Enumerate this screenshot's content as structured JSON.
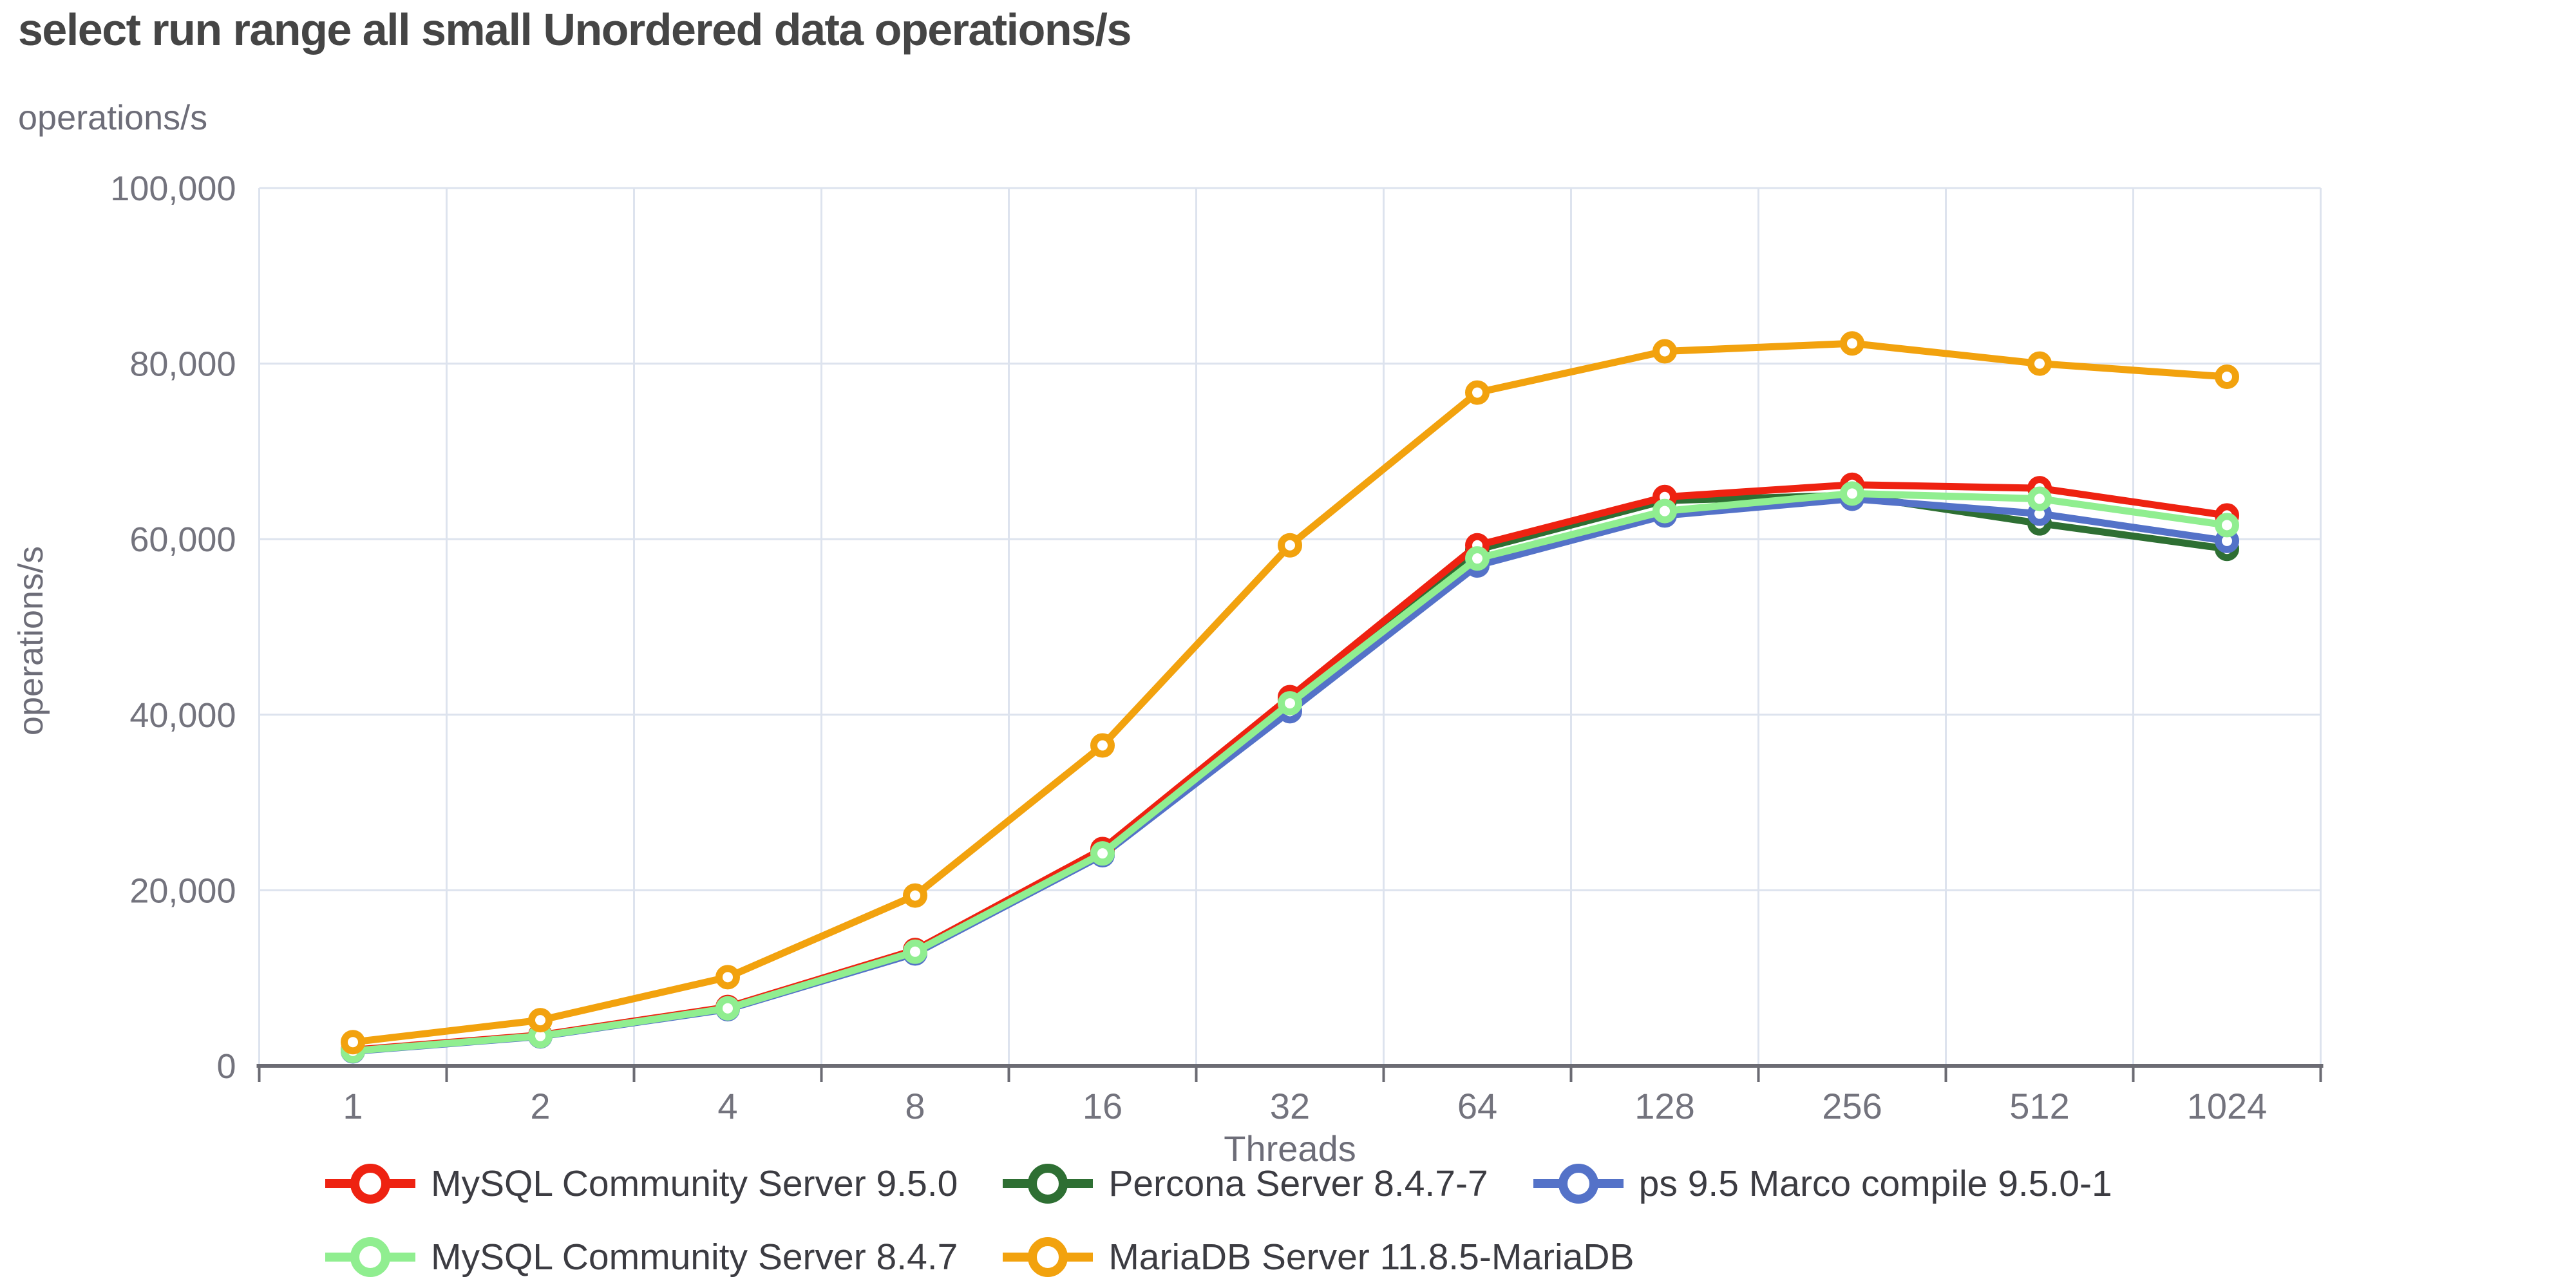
{
  "header": {
    "title": "select run range all small Unordered data operations/s",
    "unit_label": "operations/s"
  },
  "chart_data": {
    "type": "line",
    "title": "select run range all small Unordered data operations/s",
    "xlabel": "Threads",
    "ylabel": "operations/s",
    "x_categories": [
      "1",
      "2",
      "4",
      "8",
      "16",
      "32",
      "64",
      "128",
      "256",
      "512",
      "1024"
    ],
    "ylim": [
      0,
      100000
    ],
    "y_ticks": [
      0,
      20000,
      40000,
      60000,
      80000,
      100000
    ],
    "grid": true,
    "legend_position": "bottom",
    "marker_style": "hollow-circle",
    "series": [
      {
        "name": "MySQL Community Server 9.5.0",
        "color": "#ee2211",
        "values": [
          1800,
          3500,
          6700,
          13200,
          24700,
          42000,
          59300,
          64800,
          66200,
          65800,
          62700
        ]
      },
      {
        "name": "Percona Server 8.4.7-7",
        "color": "#2e6f33",
        "values": [
          1750,
          3450,
          6600,
          13100,
          24400,
          41700,
          58800,
          64400,
          65000,
          61800,
          58900
        ]
      },
      {
        "name": "ps 9.5 Marco compile 9.5.0-1",
        "color": "#5472c8",
        "values": [
          1650,
          3350,
          6450,
          12800,
          24000,
          40400,
          57000,
          62700,
          64600,
          62900,
          59800
        ]
      },
      {
        "name": "MySQL Community Server 8.4.7",
        "color": "#90ee90",
        "values": [
          1700,
          3400,
          6550,
          13000,
          24200,
          41300,
          57800,
          63200,
          65200,
          64600,
          61600
        ]
      },
      {
        "name": "MariaDB Server 11.8.5-MariaDB",
        "color": "#f2a20e",
        "values": [
          2700,
          5200,
          10100,
          19400,
          36500,
          59300,
          76700,
          81400,
          82300,
          80000,
          78500
        ]
      }
    ],
    "colors": {
      "grid_line": "#dde3ee",
      "axis_line": "#6b6b73",
      "tick_label": "#73737d",
      "axis_title": "#6d6d78",
      "chart_title": "#454545",
      "legend_text": "#3c3c42"
    }
  }
}
